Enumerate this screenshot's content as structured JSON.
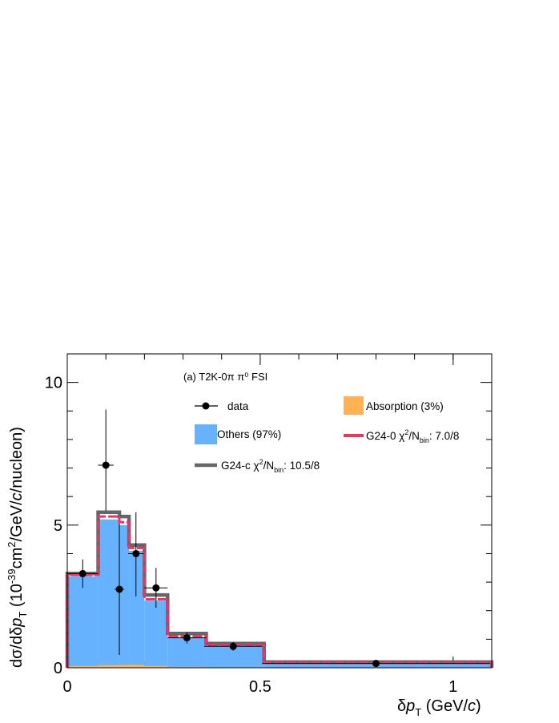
{
  "chart_data": {
    "type": "histogram",
    "panel_label": "(a) T2K-0π  π⁰ FSI",
    "xlabel": {
      "pre": "δ",
      "var": "p",
      "sub": "T",
      "mid": " (GeV/",
      "unit_var": "c",
      "post": ")"
    },
    "ylabel": {
      "pre": "dσ/dδ",
      "var": "p",
      "sub": "T",
      "open": " (10",
      "exp": "-39",
      "mid": "cm",
      "exp2": "2",
      "mid2": "/GeV/",
      "unit_var": "c",
      "post": "/nucleon)"
    },
    "xlim": [
      0,
      1.1
    ],
    "ylim": [
      0,
      11
    ],
    "x_ticks": [
      "0",
      "0.5",
      "1"
    ],
    "y_ticks": [
      "0",
      "5",
      "10"
    ],
    "x_tick_values": [
      0,
      0.5,
      1
    ],
    "y_tick_values": [
      0,
      5,
      10
    ],
    "x_minor": [
      0.1,
      0.2,
      0.3,
      0.4,
      0.6,
      0.7,
      0.8,
      0.9,
      1.0
    ],
    "y_minor": [
      1,
      2,
      3,
      4,
      6,
      7,
      8,
      9
    ],
    "bin_edges": [
      0,
      0.08,
      0.135,
      0.16,
      0.2,
      0.26,
      0.36,
      0.51,
      1.1
    ],
    "series": [
      {
        "name": "Others (97%)",
        "kind": "filled",
        "color": "#66b2ff",
        "values": [
          3.2,
          5.2,
          5.0,
          4.1,
          2.35,
          1.05,
          0.8,
          0.15
        ]
      },
      {
        "name": "Absorption (3%)",
        "kind": "filled",
        "color": "#ffb253",
        "values": [
          0.06,
          0.09,
          0.1,
          0.1,
          0.06,
          0.03,
          0.02,
          0.01
        ]
      },
      {
        "name": "G24-c",
        "chi2": "10.5/8",
        "kind": "step",
        "color": "#666666",
        "values": [
          3.3,
          5.45,
          5.3,
          4.3,
          2.55,
          1.2,
          0.85,
          0.2
        ]
      },
      {
        "name": "G24-0",
        "chi2": "7.0/8",
        "kind": "step-dashed",
        "color": "#ee3366",
        "values": [
          3.25,
          5.3,
          5.1,
          4.2,
          2.4,
          1.1,
          0.8,
          0.18
        ]
      }
    ],
    "data_points": {
      "name": "data",
      "points": [
        {
          "x": 0.04,
          "y": 3.3,
          "xerr": 0.04,
          "yerr_lo": 0.5,
          "yerr_hi": 0.5
        },
        {
          "x": 0.1,
          "y": 7.1,
          "xerr": 0.02,
          "yerr_lo": 1.6,
          "yerr_hi": 1.95
        },
        {
          "x": 0.135,
          "y": 2.75,
          "xerr": 0.012,
          "yerr_lo": 2.3,
          "yerr_hi": 2.3
        },
        {
          "x": 0.178,
          "y": 4.0,
          "xerr": 0.02,
          "yerr_lo": 1.5,
          "yerr_hi": 1.45
        },
        {
          "x": 0.23,
          "y": 2.8,
          "xerr": 0.03,
          "yerr_lo": 0.7,
          "yerr_hi": 0.7
        },
        {
          "x": 0.31,
          "y": 1.05,
          "xerr": 0.05,
          "yerr_lo": 0.2,
          "yerr_hi": 0.2
        },
        {
          "x": 0.43,
          "y": 0.75,
          "xerr": 0.075,
          "yerr_lo": 0.15,
          "yerr_hi": 0.15
        },
        {
          "x": 0.8,
          "y": 0.15,
          "xerr": 0.295,
          "yerr_lo": 0.05,
          "yerr_hi": 0.05
        }
      ]
    },
    "legend": {
      "data": "data",
      "absorption": "Absorption (3%)",
      "others": "Others (97%)",
      "g24_0": {
        "pre": "G24-0 χ",
        "sup": "2",
        "mid": "/N",
        "sub": "bin",
        "post": ": 7.0/8"
      },
      "g24_c": {
        "pre": "G24-c χ",
        "sup": "2",
        "mid": "/N",
        "sub": "bin",
        "post": ": 10.5/8"
      }
    }
  }
}
